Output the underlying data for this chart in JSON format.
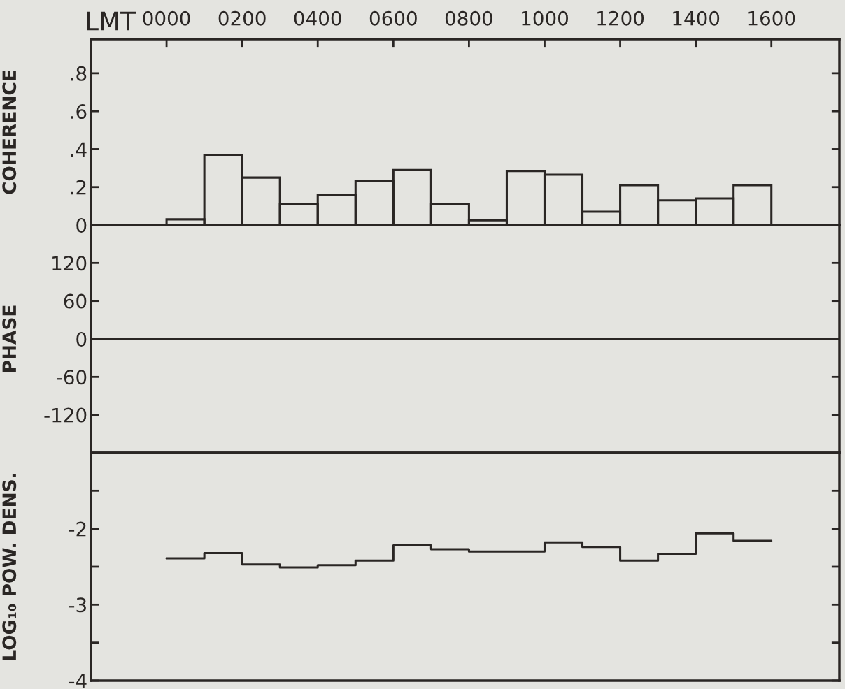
{
  "chart_data": [
    {
      "type": "histogram",
      "xlabel": "LMT",
      "ylabel": "COHERENCE",
      "color": "#2a2624",
      "bins": [
        0,
        100,
        200,
        300,
        400,
        500,
        600,
        700,
        800,
        900,
        1000,
        1100,
        1200,
        1300,
        1400,
        1500,
        1600
      ],
      "values": [
        0.03,
        0.37,
        0.25,
        0.11,
        0.16,
        0.23,
        0.29,
        0.11,
        0.025,
        0.285,
        0.265,
        0.07,
        0.21,
        0.13,
        0.14,
        0.21
      ],
      "xlim": [
        -200,
        1780
      ],
      "ylim": [
        0,
        0.98
      ],
      "xticks": [
        {
          "value": 0,
          "label": "0000"
        },
        {
          "value": 200,
          "label": "0200"
        },
        {
          "value": 400,
          "label": "0400"
        },
        {
          "value": 600,
          "label": "0600"
        },
        {
          "value": 800,
          "label": "0800"
        },
        1000,
        1200,
        1400,
        1600
      ],
      "yticks": [
        0,
        {
          "value": 0.2,
          "label": ".2"
        },
        {
          "value": 0.4,
          "label": ".4"
        },
        {
          "value": 0.6,
          "label": ".6"
        },
        {
          "value": 0.8,
          "label": ".8"
        }
      ],
      "grid": false,
      "legend": false
    },
    {
      "type": "line",
      "ylabel": "PHASE",
      "xlim": [
        -200,
        1780
      ],
      "ylim": [
        -180,
        180
      ],
      "yticks": [
        -120,
        -60,
        0,
        60,
        120
      ],
      "tick_labels": "y",
      "ref_lines": [
        {
          "axis": "y",
          "value": 0,
          "color": "#2a2624"
        }
      ],
      "grid": false,
      "legend": false
    },
    {
      "type": "step",
      "ylabel": "LOG₁₀ POW. DENS.",
      "color": "#2a2624",
      "x": [
        0,
        100,
        200,
        300,
        400,
        500,
        600,
        700,
        800,
        900,
        1000,
        1100,
        1200,
        1300,
        1400,
        1500,
        1600
      ],
      "values": [
        -2.39,
        -2.32,
        -2.47,
        -2.51,
        -2.48,
        -2.42,
        -2.22,
        -2.27,
        -2.3,
        -2.3,
        -2.18,
        -2.24,
        -2.42,
        -2.33,
        -2.06,
        -2.16,
        -2.16
      ],
      "xlim": [
        -200,
        1780
      ],
      "ylim": [
        -4,
        -1
      ],
      "yticks": [
        -4,
        {
          "value": -3.5,
          "label": null
        },
        -3,
        {
          "value": -2.5,
          "label": null
        },
        -2,
        {
          "value": -1.5,
          "label": null
        }
      ],
      "tick_labels": "y",
      "grid": false,
      "legend": false
    }
  ]
}
